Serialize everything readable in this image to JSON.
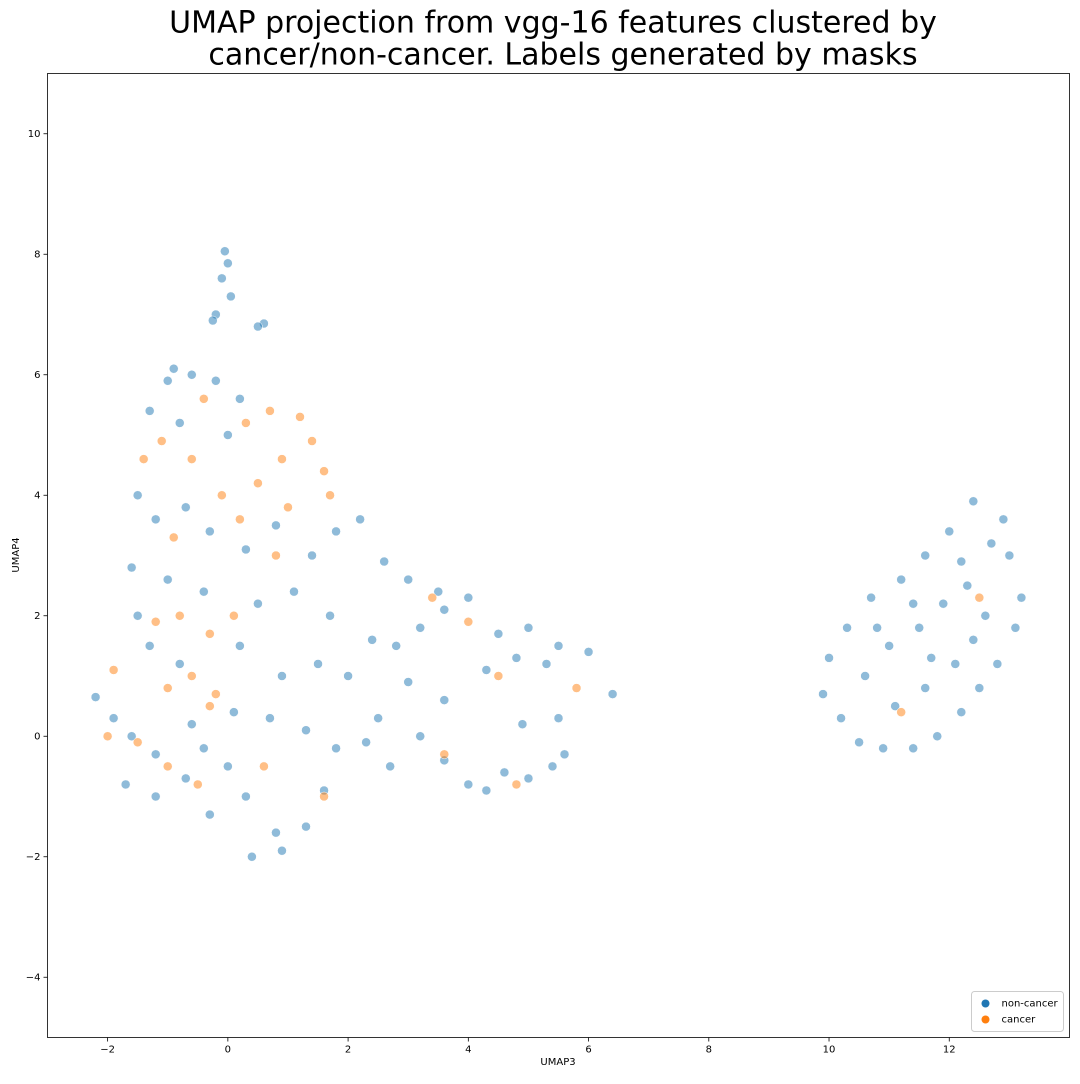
{
  "chart_data": {
    "type": "scatter",
    "title": [
      "UMAP projection from vgg-16 features clustered by",
      "cancer/non-cancer. Labels generated by masks"
    ],
    "x_label": "UMAP3",
    "y_label": "UMAP4",
    "xlim": [
      -3,
      14
    ],
    "ylim": [
      -5,
      11
    ],
    "xticks": [
      {
        "value": -2,
        "label": "−2"
      },
      0,
      2,
      4,
      6,
      8,
      10,
      12
    ],
    "yticks": [
      {
        "value": -4,
        "label": "−4"
      },
      {
        "value": -2,
        "label": "−2"
      },
      0,
      2,
      4,
      6,
      8,
      10
    ],
    "grid": false,
    "legend": "lower right",
    "series": [
      {
        "name": "non-cancer",
        "color": "#1f77b4",
        "x": [
          -0.05,
          0,
          -0.1,
          0.05,
          -0.2,
          -0.25,
          0.6,
          0.5,
          -0.9,
          -1.0,
          -0.6,
          -0.2,
          0.2,
          -1.3,
          -0.8,
          0.0,
          -1.5,
          -1.2,
          -0.7,
          -0.3,
          0.3,
          0.8,
          1.4,
          1.8,
          2.2,
          2.6,
          -1.6,
          -1.0,
          -0.4,
          0.5,
          1.1,
          1.7,
          -1.5,
          -1.3,
          -0.8,
          0.2,
          0.9,
          1.5,
          2.0,
          -2.2,
          -1.9,
          -1.6,
          -1.2,
          -0.6,
          0.1,
          0.7,
          1.3,
          1.8,
          -1.7,
          -1.2,
          -0.7,
          -0.3,
          0.3,
          0.8,
          1.3,
          0.4,
          0.9,
          1.6,
          0.0,
          -0.4,
          2.4,
          2.8,
          3.2,
          3.6,
          4.0,
          4.5,
          5.0,
          5.5,
          6.0,
          6.4,
          3.0,
          3.6,
          4.3,
          4.8,
          5.3,
          2.5,
          3.0,
          3.5,
          3.2,
          3.6,
          4.0,
          4.3,
          4.6,
          5.0,
          5.4,
          5.6,
          5.5,
          4.9,
          2.7,
          2.3,
          9.9,
          10.2,
          10.5,
          10.9,
          11.4,
          11.8,
          12.2,
          12.5,
          12.8,
          13.1,
          13.2,
          13.0,
          12.9,
          12.4,
          12.0,
          11.6,
          11.2,
          10.7,
          10.3,
          10.0,
          10.6,
          11.0,
          11.5,
          11.9,
          12.3,
          12.6,
          12.1,
          11.6,
          11.1,
          10.8,
          11.4,
          12.7,
          12.2,
          11.7,
          12.4
        ],
        "values": [
          8.05,
          7.85,
          7.6,
          7.3,
          7.0,
          6.9,
          6.85,
          6.8,
          6.1,
          5.9,
          6.0,
          5.9,
          5.6,
          5.4,
          5.2,
          5.0,
          4.0,
          3.6,
          3.8,
          3.4,
          3.1,
          3.5,
          3.0,
          3.4,
          3.6,
          2.9,
          2.8,
          2.6,
          2.4,
          2.2,
          2.4,
          2.0,
          2.0,
          1.5,
          1.2,
          1.5,
          1.0,
          1.2,
          1.0,
          0.65,
          0.3,
          0.0,
          -0.3,
          0.2,
          0.4,
          0.3,
          0.1,
          -0.2,
          -0.8,
          -1.0,
          -0.7,
          -1.3,
          -1.0,
          -1.6,
          -1.5,
          -2.0,
          -1.9,
          -0.9,
          -0.5,
          -0.2,
          1.6,
          1.5,
          1.8,
          2.1,
          2.3,
          1.7,
          1.8,
          1.5,
          1.4,
          0.7,
          0.9,
          0.6,
          1.1,
          1.3,
          1.2,
          0.3,
          2.6,
          2.4,
          0.0,
          -0.4,
          -0.8,
          -0.9,
          -0.6,
          -0.7,
          -0.5,
          -0.3,
          0.3,
          0.2,
          -0.5,
          -0.1,
          0.7,
          0.3,
          -0.1,
          -0.2,
          -0.2,
          0.0,
          0.4,
          0.8,
          1.2,
          1.8,
          2.3,
          3.0,
          3.6,
          3.9,
          3.4,
          3.0,
          2.6,
          2.3,
          1.8,
          1.3,
          1.0,
          1.5,
          1.8,
          2.2,
          2.5,
          2.0,
          1.2,
          0.8,
          0.5,
          1.8,
          2.2,
          3.2,
          2.9,
          1.3,
          1.6
        ]
      },
      {
        "name": "cancer",
        "color": "#ff7f0e",
        "x": [
          -1.4,
          -1.1,
          -0.6,
          0.3,
          0.7,
          1.2,
          1.4,
          0.9,
          1.6,
          1.7,
          0.5,
          -0.1,
          -0.9,
          0.2,
          1.0,
          -1.2,
          -0.8,
          -0.3,
          0.1,
          -0.6,
          -0.2,
          -1.0,
          -1.9,
          -2.0,
          -1.5,
          -1.0,
          -0.5,
          -0.3,
          0.6,
          1.6,
          3.4,
          4.0,
          4.5,
          5.8,
          3.6,
          4.8,
          12.5,
          11.2,
          -0.4,
          0.8
        ],
        "values": [
          4.6,
          4.9,
          4.6,
          5.2,
          5.4,
          5.3,
          4.9,
          4.6,
          4.4,
          4.0,
          4.2,
          4.0,
          3.3,
          3.6,
          3.8,
          1.9,
          2.0,
          1.7,
          2.0,
          1.0,
          0.7,
          0.8,
          1.1,
          0.0,
          -0.1,
          -0.5,
          -0.8,
          0.5,
          -0.5,
          -1.0,
          2.3,
          1.9,
          1.0,
          0.8,
          -0.3,
          -0.8,
          2.3,
          0.4,
          5.6,
          3.0
        ]
      }
    ]
  }
}
